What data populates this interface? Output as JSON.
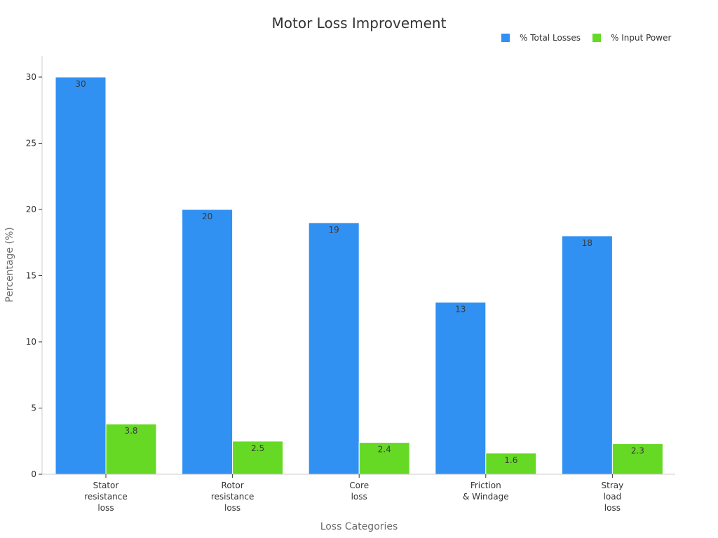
{
  "chart_data": {
    "type": "bar",
    "title": "Motor Loss Improvement",
    "xlabel": "Loss Categories",
    "ylabel": "Percentage (%)",
    "categories": [
      [
        "Stator",
        "resistance",
        "loss"
      ],
      [
        "Rotor",
        "resistance",
        "loss"
      ],
      [
        "Core",
        "loss"
      ],
      [
        "Friction",
        "& Windage"
      ],
      [
        "Stray",
        "load",
        "loss"
      ]
    ],
    "series": [
      {
        "name": "% Total Losses",
        "color": "#3091f2",
        "values": [
          30,
          20,
          19,
          13,
          18
        ],
        "labels": [
          "30",
          "20",
          "19",
          "13",
          "18"
        ]
      },
      {
        "name": "% Input Power",
        "color": "#66d925",
        "values": [
          3.8,
          2.5,
          2.4,
          1.6,
          2.3
        ],
        "labels": [
          "3.8",
          "2.5",
          "2.4",
          "1.6",
          "2.3"
        ]
      }
    ],
    "ylim": [
      0,
      31.5
    ],
    "yticks": [
      0,
      5,
      10,
      15,
      20,
      25,
      30
    ],
    "grid": false,
    "legend_position": "top-right"
  }
}
